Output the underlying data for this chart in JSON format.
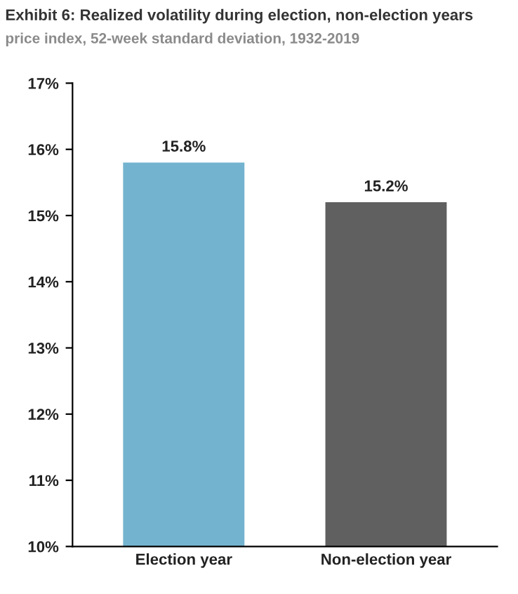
{
  "chart_data": {
    "type": "bar",
    "title": "Exhibit 6: Realized volatility during election, non-election years",
    "subtitle": "price index, 52-week standard deviation, 1932-2019",
    "categories": [
      "Election year",
      "Non-election year"
    ],
    "values": [
      15.8,
      15.2
    ],
    "colors": [
      "#74b3cf",
      "#606060"
    ],
    "value_labels": [
      "15.8%",
      "15.2%"
    ],
    "ylim": [
      10,
      17
    ],
    "yticks": [
      {
        "value": 10,
        "label": "10%"
      },
      {
        "value": 11,
        "label": "11%"
      },
      {
        "value": 12,
        "label": "12%"
      },
      {
        "value": 13,
        "label": "13%"
      },
      {
        "value": 14,
        "label": "14%"
      },
      {
        "value": 15,
        "label": "15%"
      },
      {
        "value": 16,
        "label": "16%"
      },
      {
        "value": 17,
        "label": "17%"
      }
    ],
    "grid": false,
    "legend": false
  }
}
